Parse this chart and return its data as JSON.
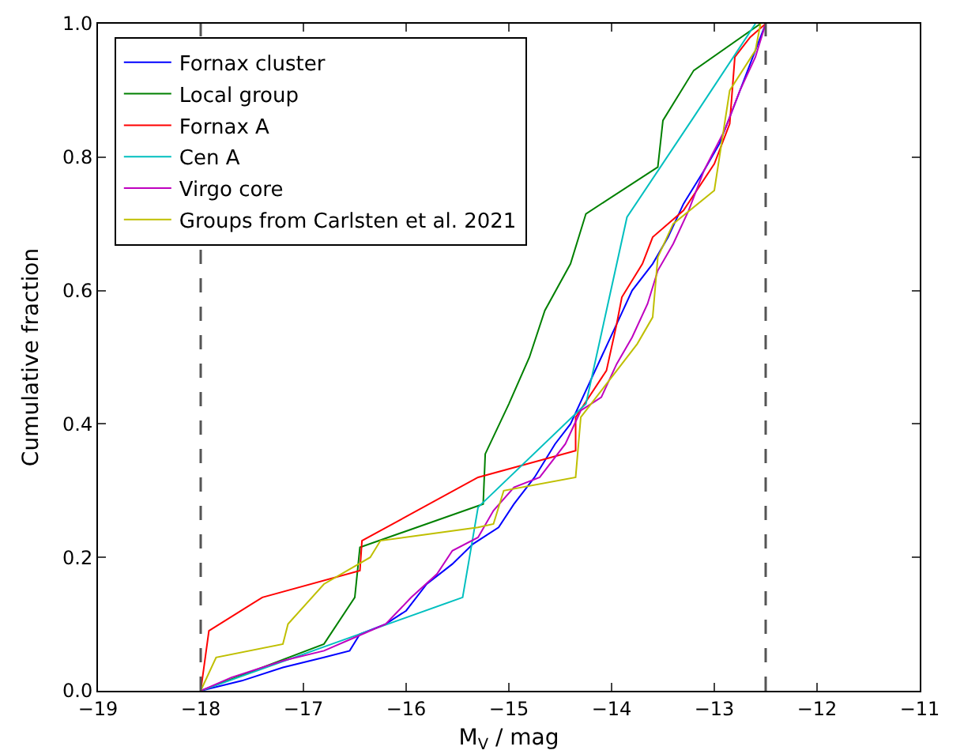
{
  "chart_data": {
    "type": "line",
    "xlabel": "M$_{V}$ / mag",
    "ylabel": "Cumulative fraction",
    "xlim": [
      -19,
      -11
    ],
    "ylim": [
      0,
      1
    ],
    "xticks": [
      -19,
      -18,
      -17,
      -16,
      -15,
      -14,
      -13,
      -12,
      -11
    ],
    "yticks": [
      {
        "value": 0,
        "label": "0.0"
      },
      {
        "value": 0.2,
        "label": "0.2"
      },
      {
        "value": 0.4,
        "label": "0.4"
      },
      {
        "value": 0.6,
        "label": "0.6"
      },
      {
        "value": 0.8,
        "label": "0.8"
      },
      {
        "value": 1,
        "label": "1.0"
      }
    ],
    "grid": false,
    "legend": "top left",
    "marker": "none",
    "line_style": "solid",
    "ref_lines": [
      {
        "axis": "x",
        "value": -18,
        "color": "#555555",
        "line_style": "dashed"
      },
      {
        "axis": "x",
        "value": -12.5,
        "color": "#555555",
        "line_style": "dashed"
      }
    ],
    "series": [
      {
        "name": "Fornax cluster",
        "color": "#0000ff",
        "x": [
          -18,
          -17.6,
          -17.2,
          -16.8,
          -16.55,
          -16.45,
          -16.2,
          -16.0,
          -15.8,
          -15.55,
          -15.35,
          -15.1,
          -14.95,
          -14.75,
          -14.55,
          -14.4,
          -14.25,
          -14.1,
          -13.95,
          -13.8,
          -13.6,
          -13.45,
          -13.3,
          -13.1,
          -12.95,
          -12.8,
          -12.65,
          -12.5
        ],
        "values": [
          0,
          0.015,
          0.035,
          0.05,
          0.06,
          0.085,
          0.1,
          0.12,
          0.16,
          0.19,
          0.22,
          0.245,
          0.28,
          0.32,
          0.37,
          0.4,
          0.45,
          0.5,
          0.55,
          0.6,
          0.64,
          0.68,
          0.73,
          0.78,
          0.82,
          0.88,
          0.94,
          1.0
        ]
      },
      {
        "name": "Local group",
        "color": "#008000",
        "x": [
          -18,
          -16.8,
          -16.5,
          -16.45,
          -15.25,
          -15.23,
          -15.0,
          -14.8,
          -14.65,
          -14.4,
          -14.25,
          -13.55,
          -13.5,
          -13.2,
          -12.55
        ],
        "values": [
          0,
          0.07,
          0.14,
          0.215,
          0.28,
          0.355,
          0.43,
          0.5,
          0.57,
          0.64,
          0.715,
          0.785,
          0.855,
          0.93,
          1.0
        ]
      },
      {
        "name": "Fornax A",
        "color": "#ff0000",
        "x": [
          -18,
          -17.92,
          -17.4,
          -16.45,
          -16.43,
          -15.3,
          -14.35,
          -14.35,
          -14.05,
          -13.95,
          -13.9,
          -13.7,
          -13.6,
          -13.3,
          -13.0,
          -12.85,
          -12.8,
          -12.65,
          -12.5
        ],
        "values": [
          0,
          0.09,
          0.14,
          0.18,
          0.225,
          0.32,
          0.36,
          0.41,
          0.48,
          0.55,
          0.59,
          0.64,
          0.68,
          0.72,
          0.79,
          0.85,
          0.95,
          0.98,
          1.0
        ]
      },
      {
        "name": "Cen A",
        "color": "#00bfbf",
        "x": [
          -18,
          -15.45,
          -15.3,
          -14.25,
          -13.85,
          -13.2,
          -12.6
        ],
        "values": [
          0,
          0.14,
          0.275,
          0.43,
          0.71,
          0.86,
          1.0
        ]
      },
      {
        "name": "Virgo core",
        "color": "#bf00bf",
        "x": [
          -18,
          -17.7,
          -17.2,
          -16.8,
          -16.5,
          -16.2,
          -15.95,
          -15.7,
          -15.55,
          -15.3,
          -15.15,
          -14.95,
          -14.7,
          -14.45,
          -14.3,
          -14.1,
          -13.95,
          -13.8,
          -13.65,
          -13.55,
          -13.4,
          -13.25,
          -13.1,
          -12.9,
          -12.75,
          -12.6,
          -12.5
        ],
        "values": [
          0,
          0.02,
          0.045,
          0.06,
          0.08,
          0.1,
          0.14,
          0.175,
          0.21,
          0.23,
          0.27,
          0.305,
          0.32,
          0.37,
          0.42,
          0.44,
          0.49,
          0.53,
          0.58,
          0.63,
          0.67,
          0.72,
          0.78,
          0.84,
          0.9,
          0.95,
          1.0
        ]
      },
      {
        "name": "Groups from Carlsten et al. 2021",
        "color": "#bfbf00",
        "x": [
          -18,
          -17.85,
          -17.2,
          -17.15,
          -16.8,
          -16.35,
          -16.25,
          -15.3,
          -15.15,
          -15.05,
          -14.35,
          -14.3,
          -14.0,
          -13.75,
          -13.6,
          -13.55,
          -13.4,
          -13.0,
          -12.85,
          -12.6,
          -12.55
        ],
        "values": [
          0,
          0.05,
          0.07,
          0.1,
          0.16,
          0.2,
          0.225,
          0.245,
          0.25,
          0.3,
          0.32,
          0.41,
          0.47,
          0.52,
          0.56,
          0.65,
          0.7,
          0.75,
          0.9,
          0.96,
          1.0
        ]
      }
    ]
  }
}
